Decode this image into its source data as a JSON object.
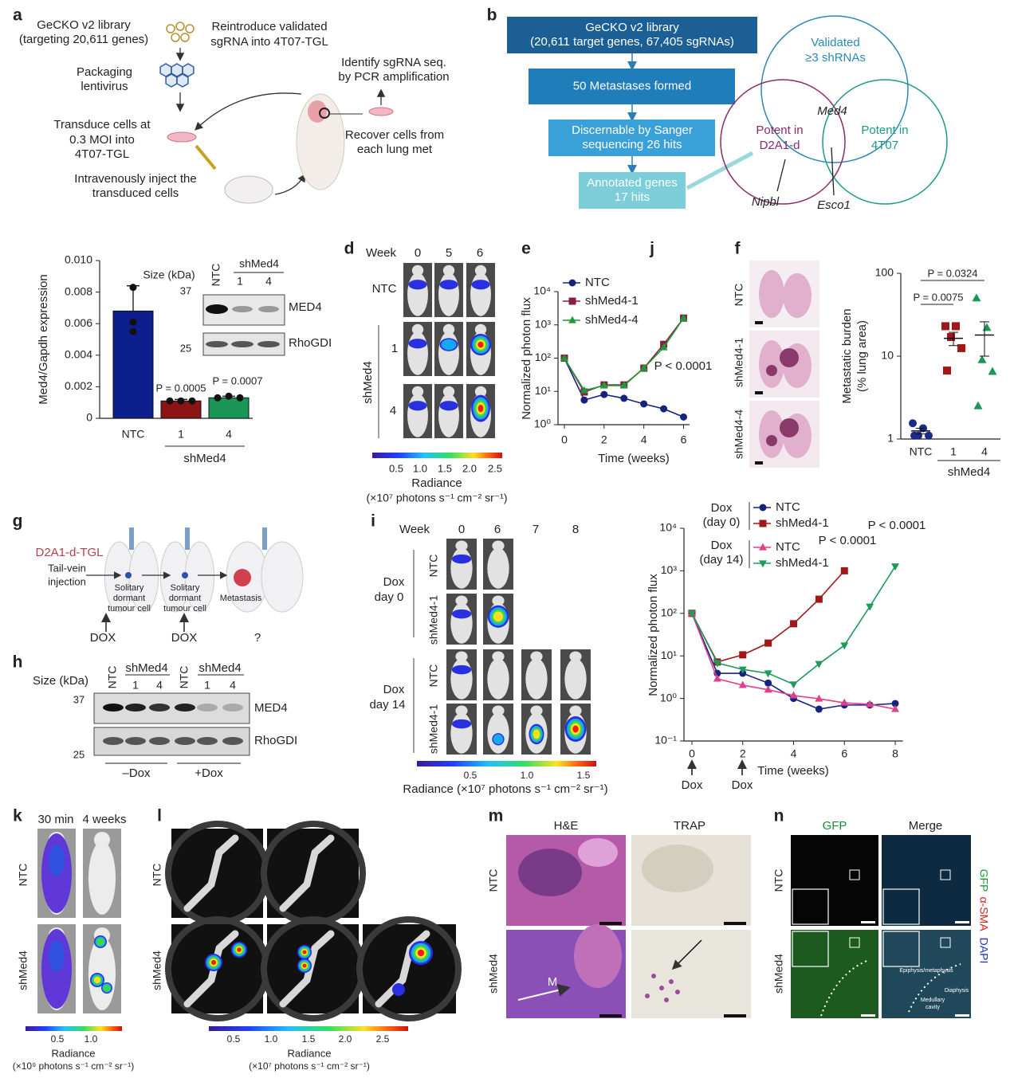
{
  "panel_a": {
    "label": "a",
    "lines": [
      "GeCKO v2 library",
      "(targeting 20,611 genes)",
      "Reintroduce validated",
      "sgRNA into 4T07-TGL",
      "Packaging",
      "lentivirus",
      "Identify sgRNA seq.",
      "by PCR amplification",
      "Transduce cells at",
      "0.3 MOI into",
      "4T07-TGL",
      "Recover cells from",
      "each lung met",
      "Intravenously inject the",
      "transduced cells"
    ]
  },
  "panel_b": {
    "label": "b",
    "boxes": [
      [
        "GeCKO v2 library",
        "(20,611 target genes, 67,405 sgRNAs)"
      ],
      [
        "50 Metastases formed"
      ],
      [
        "Discernable by Sanger",
        "sequencing 26 hits"
      ],
      [
        "Annotated genes",
        "17 hits"
      ]
    ],
    "venn": {
      "top": [
        "Validated",
        "≥3 shRNAs"
      ],
      "center": "Med4",
      "left": [
        "Potent in",
        "D2A1-d"
      ],
      "right": [
        "Potent in",
        "4T07"
      ],
      "genes": [
        "Nipbl",
        "Esco1"
      ]
    }
  },
  "panel_c_blot": {
    "size_label": "Size (kDa)",
    "markers": [
      "37",
      "25"
    ],
    "lanes": [
      "NTC",
      "1",
      "4"
    ],
    "group": "shMed4",
    "bands": [
      "MED4",
      "RhoGDI"
    ]
  },
  "panel_d": {
    "label": "d",
    "week_label": "Week",
    "weeks": [
      "0",
      "5",
      "6"
    ],
    "rows": [
      "NTC",
      "1",
      "4"
    ],
    "group": "shMed4",
    "colorbar_ticks": [
      "0.5",
      "1.0",
      "1.5",
      "2.0",
      "2.5"
    ],
    "colorbar_title": "Radiance",
    "colorbar_units": "(×10⁷ photons s⁻¹ cm⁻² sr⁻¹)"
  },
  "panel_f_images": {
    "rows": [
      "NTC",
      "shMed4-1",
      "shMed4-4"
    ]
  },
  "panel_g": {
    "label": "g",
    "cell_line": "D2A1-d-TGL",
    "route": [
      "Tail-vein",
      "injection"
    ],
    "stages": [
      [
        "Solitary",
        "dormant",
        "tumour cell"
      ],
      [
        "Solitary",
        "dormant",
        "tumour cell"
      ],
      [
        "Metastasis"
      ]
    ],
    "treatments": [
      "DOX",
      "DOX",
      "?"
    ]
  },
  "panel_h": {
    "label": "h",
    "size_label": "Size (kDa)",
    "lanes": [
      "NTC",
      "1",
      "4",
      "NTC",
      "1",
      "4"
    ],
    "groups": [
      "shMed4",
      "shMed4"
    ],
    "markers": [
      "37",
      "25"
    ],
    "bands": [
      "MED4",
      "RhoGDI"
    ],
    "conditions": [
      "–Dox",
      "+Dox"
    ]
  },
  "panel_i": {
    "label": "i",
    "week_label": "Week",
    "weeks": [
      "0",
      "6",
      "7",
      "8"
    ],
    "conditions": [
      [
        "Dox",
        "day 0"
      ],
      [
        "Dox",
        "day 14"
      ]
    ],
    "rows": [
      "NTC",
      "shMed4-1",
      "NTC",
      "shMed4-1"
    ],
    "colorbar_ticks": [
      "0.5",
      "1.0",
      "1.5"
    ],
    "colorbar_title": "Radiance (×10⁷ photons s⁻¹ cm⁻² sr⁻¹)"
  },
  "panel_k": {
    "label": "k",
    "columns": [
      "30 min",
      "4 weeks"
    ],
    "rows": [
      "NTC",
      "shMed4"
    ],
    "colorbar_ticks": [
      "0.5",
      "1.0"
    ],
    "colorbar_title": "Radiance",
    "colorbar_units": "(×10⁹ photons s⁻¹ cm⁻² sr⁻¹)"
  },
  "panel_l": {
    "label": "l",
    "rows": [
      "NTC",
      "shMed4"
    ],
    "colorbar_ticks": [
      "0.5",
      "1.0",
      "1.5",
      "2.0",
      "2.5"
    ],
    "colorbar_title": "Radiance",
    "colorbar_units": "(×10⁷ photons s⁻¹ cm⁻² sr⁻¹)"
  },
  "panel_m": {
    "label": "m",
    "columns": [
      "H&E",
      "TRAP"
    ],
    "rows": [
      "NTC",
      "shMed4"
    ],
    "annotation": "M"
  },
  "panel_n": {
    "label": "n",
    "columns": [
      "GFP",
      "Merge"
    ],
    "rows": [
      "NTC",
      "shMed4"
    ],
    "stains": [
      "GFP",
      "α-SMA",
      "DAPI"
    ],
    "regions": [
      "Epiphysis/metaphysis",
      "Diaphysis",
      "Medullary",
      "cavity"
    ]
  },
  "chart_data": [
    {
      "panel": "c",
      "type": "bar",
      "ylabel": "Med4/Gapdh expression",
      "categories": [
        "NTC",
        "1",
        "4"
      ],
      "group_label": "shMed4",
      "values": [
        0.0068,
        0.0011,
        0.0013
      ],
      "errors": [
        0.0016,
        0.0001,
        0.0001
      ],
      "points": [
        [
          0.0083,
          0.0061,
          0.0055
        ],
        [
          0.0011,
          0.0011,
          0.0011
        ],
        [
          0.0013,
          0.0014,
          0.0013
        ]
      ],
      "colors": [
        "#0d1f8c",
        "#8b1414",
        "#1a9656"
      ],
      "ylim": [
        0,
        0.01
      ],
      "yticks": [
        0,
        0.002,
        0.004,
        0.006,
        0.008,
        {
          "value": 0.01,
          "label": "0.010"
        }
      ],
      "annotations": [
        "P = 0.0005",
        "P = 0.0007"
      ]
    },
    {
      "panel": "e",
      "type": "line",
      "xlabel": "Time (weeks)",
      "ylabel": "Normalized photon flux",
      "x": [
        0,
        1,
        2,
        3,
        4,
        5,
        6
      ],
      "series": [
        {
          "name": "NTC",
          "color": "#16237e",
          "marker": "circle",
          "values": [
            100,
            5.5,
            8.1,
            6.2,
            4.2,
            3,
            1.7
          ]
        },
        {
          "name": "shMed4-1",
          "color": "#8b1e3f",
          "marker": "square",
          "values": [
            100,
            9.6,
            15.7,
            15.7,
            50,
            260,
            1600
          ]
        },
        {
          "name": "shMed4-4",
          "color": "#1f9a3a",
          "marker": "triangle",
          "values": [
            100,
            10.7,
            15,
            15,
            50,
            210,
            1600
          ]
        }
      ],
      "log_y": true,
      "xlim": [
        -0.3,
        6.3
      ],
      "xticks": [
        0,
        2,
        4,
        6
      ],
      "ylim": [
        1,
        10000
      ],
      "yticks": [
        {
          "value": 1,
          "label": "10⁰"
        },
        {
          "value": 10,
          "label": "10¹"
        },
        {
          "value": 100,
          "label": "10²"
        },
        {
          "value": 1000,
          "label": "10³"
        },
        {
          "value": 10000,
          "label": "10⁴"
        }
      ],
      "annotations": [
        "P < 0.0001"
      ]
    },
    {
      "panel": "f",
      "type": "scatter",
      "ylabel": [
        "Metastatic burden",
        "(% lung area)"
      ],
      "categories": [
        "NTC",
        "1",
        "4"
      ],
      "group_label": "shMed4",
      "points": [
        [
          1.55,
          1.35,
          1.1,
          1.1,
          1.1
        ],
        [
          23,
          23,
          17,
          12.5,
          6.7
        ],
        [
          50,
          22,
          9,
          6.5,
          2.5
        ]
      ],
      "means": [
        1.25,
        16.4,
        18
      ],
      "errors": [
        0.1,
        3,
        8
      ],
      "colors": [
        "#1a2a8c",
        "#a01818",
        "#1a9656"
      ],
      "markers": [
        "circle",
        "square",
        "triangle"
      ],
      "log_y": true,
      "ylim": [
        1,
        100
      ],
      "yticks": [
        1,
        10,
        100
      ],
      "annotations": [
        "P = 0.0324",
        "P = 0.0075"
      ]
    },
    {
      "panel": "j",
      "type": "line",
      "xlabel": "Time (weeks)",
      "ylabel": "Normalized photon flux",
      "x": [
        0,
        1,
        2,
        3,
        4,
        5,
        6,
        7,
        8
      ],
      "legend_groups": [
        [
          "Dox",
          "(day 0)"
        ],
        [
          "Dox",
          "(day 14)"
        ]
      ],
      "series": [
        {
          "name": "NTC",
          "color": "#16237e",
          "marker": "circle",
          "values": [
            100,
            3.9,
            3.9,
            2.3,
            1,
            0.56,
            0.7,
            0.7,
            0.76
          ]
        },
        {
          "name": "shMed4-1",
          "color": "#a01818",
          "marker": "square",
          "values": [
            100,
            7.2,
            10.6,
            20,
            57,
            215,
            1000,
            null,
            null
          ]
        },
        {
          "name": "NTC",
          "color": "#e0408a",
          "marker": "triangle",
          "values": [
            100,
            2.9,
            2.05,
            1.6,
            1.17,
            0.98,
            0.79,
            0.73,
            0.56
          ]
        },
        {
          "name": "shMed4-1",
          "color": "#1f9a5a",
          "marker": "triangle-down",
          "values": [
            100,
            6.8,
            4.8,
            3.9,
            2.15,
            6.5,
            17.7,
            145,
            1280
          ]
        }
      ],
      "log_y": true,
      "xlim": [
        -0.3,
        8.3
      ],
      "xticks": [
        0,
        2,
        4,
        6,
        8
      ],
      "ylim": [
        0.1,
        10000
      ],
      "yticks": [
        {
          "value": 0.1,
          "label": "10⁻¹"
        },
        {
          "value": 1,
          "label": "10⁰"
        },
        {
          "value": 10,
          "label": "10¹"
        },
        {
          "value": 100,
          "label": "10²"
        },
        {
          "value": 1000,
          "label": "10³"
        },
        {
          "value": 10000,
          "label": "10⁴"
        }
      ],
      "annotations": [
        "P < 0.0001",
        "P < 0.0001"
      ],
      "arrow_labels": [
        "Dox",
        "Dox"
      ]
    }
  ]
}
